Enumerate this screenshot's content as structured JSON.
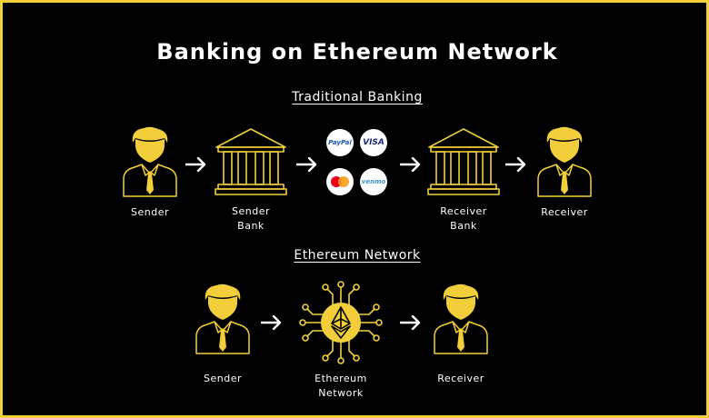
{
  "title": "Banking on Ethereum Network",
  "colors": {
    "accent": "#f2cf3a",
    "background": "#000000",
    "text": "#ffffff"
  },
  "traditional": {
    "heading": "Traditional Banking",
    "nodes": [
      {
        "label": "Sender",
        "icon": "person-icon"
      },
      {
        "label": "Sender\nBank",
        "icon": "bank-icon"
      },
      {
        "label": "",
        "icon": "payment-methods"
      },
      {
        "label": "Receiver\nBank",
        "icon": "bank-icon"
      },
      {
        "label": "Receiver",
        "icon": "person-icon"
      }
    ],
    "payment_methods": [
      "PayPal",
      "VISA",
      "mastercard",
      "venmo"
    ]
  },
  "ethereum": {
    "heading": "Ethereum Network",
    "nodes": [
      {
        "label": "Sender",
        "icon": "person-icon"
      },
      {
        "label": "Ethereum\nNetwork",
        "icon": "ethereum-chip-icon"
      },
      {
        "label": "Receiver",
        "icon": "person-icon"
      }
    ]
  }
}
